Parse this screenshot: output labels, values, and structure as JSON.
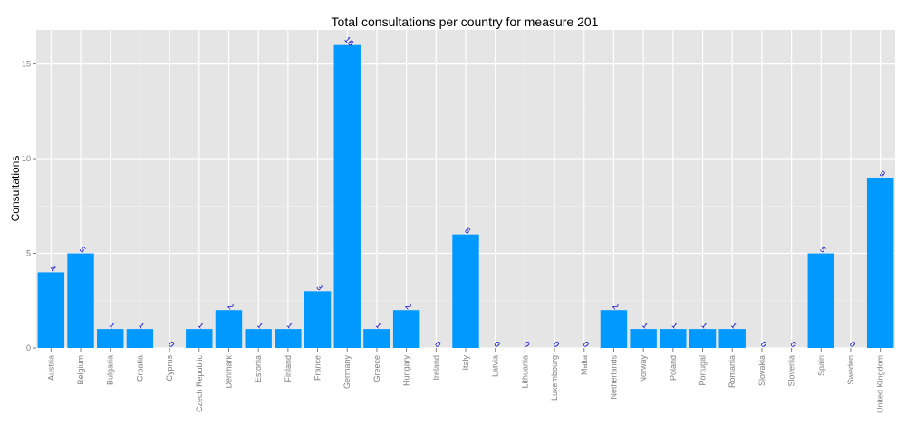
{
  "chart_data": {
    "type": "bar",
    "title": "Total consultations per country for measure 201",
    "xlabel": "",
    "ylabel": "Consultations",
    "ylim": [
      0,
      16.8
    ],
    "yticks": [
      0,
      5,
      10,
      15
    ],
    "grid": true,
    "categories": [
      "Austria",
      "Belgium",
      "Bulgaria",
      "Croatia",
      "Cyprus",
      "Czech Republic",
      "Denmark",
      "Estonia",
      "Finland",
      "France",
      "Germany",
      "Greece",
      "Hungary",
      "Ireland",
      "Italy",
      "Latvia",
      "Lithuania",
      "Luxembourg",
      "Malta",
      "Netherlands",
      "Norway",
      "Poland",
      "Portugal",
      "Romania",
      "Slovakia",
      "Slovenia",
      "Spain",
      "Sweden",
      "United Kingdom"
    ],
    "values": [
      4,
      5,
      1,
      1,
      0,
      1,
      2,
      1,
      1,
      3,
      16,
      1,
      2,
      0,
      6,
      0,
      0,
      0,
      0,
      2,
      1,
      1,
      1,
      1,
      0,
      0,
      5,
      0,
      9
    ],
    "colors": {
      "bar": "#0099ff",
      "label": "#0000cc",
      "panel": "#e5e5e5",
      "grid_major": "#ffffff",
      "grid_minor": "#f2f2f2"
    }
  }
}
